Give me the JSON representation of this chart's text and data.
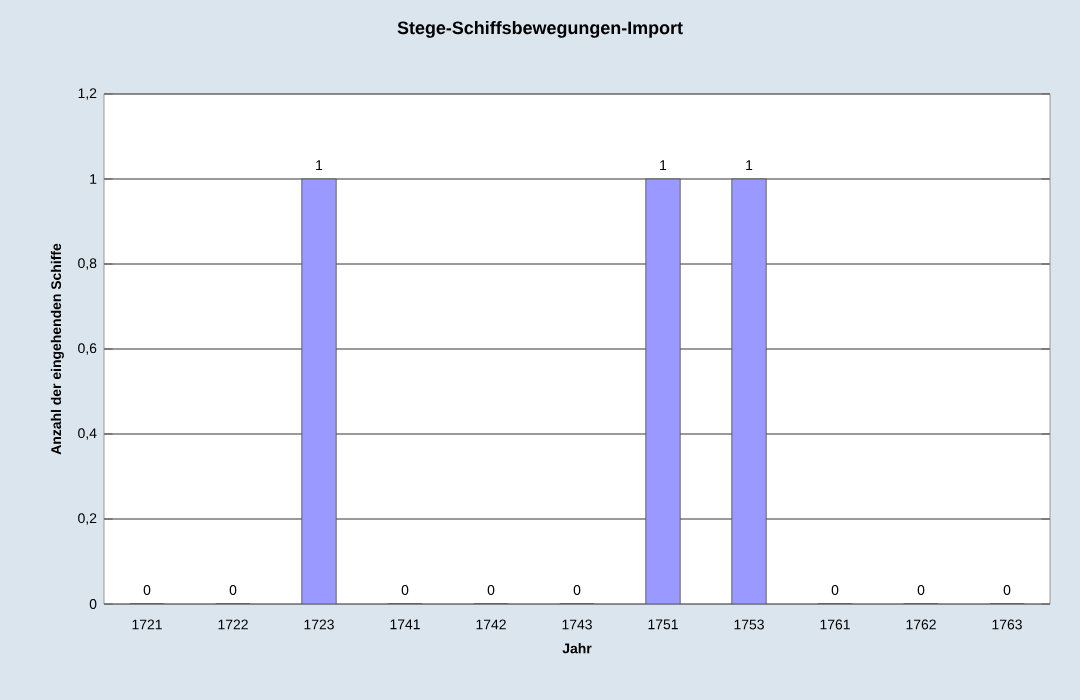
{
  "chart_data": {
    "type": "bar",
    "title": "Stege-Schiffsbewegungen-Import",
    "xlabel": "Jahr",
    "ylabel": "Anzahl der eingehenden Schiffe",
    "categories": [
      "1721",
      "1722",
      "1723",
      "1741",
      "1742",
      "1743",
      "1751",
      "1753",
      "1761",
      "1762",
      "1763"
    ],
    "values": [
      0,
      0,
      1,
      0,
      0,
      0,
      1,
      1,
      0,
      0,
      0
    ],
    "color": "#9999ff",
    "ylim": [
      0,
      1.2
    ],
    "yticks": [
      0,
      {
        "value": 0.2,
        "label": "0,2"
      },
      {
        "value": 0.4,
        "label": "0,4"
      },
      {
        "value": 0.6,
        "label": "0,6"
      },
      {
        "value": 0.8,
        "label": "0,8"
      },
      1,
      {
        "value": 1.2,
        "label": "1,2"
      }
    ],
    "grid": "y",
    "data_labels": true
  }
}
